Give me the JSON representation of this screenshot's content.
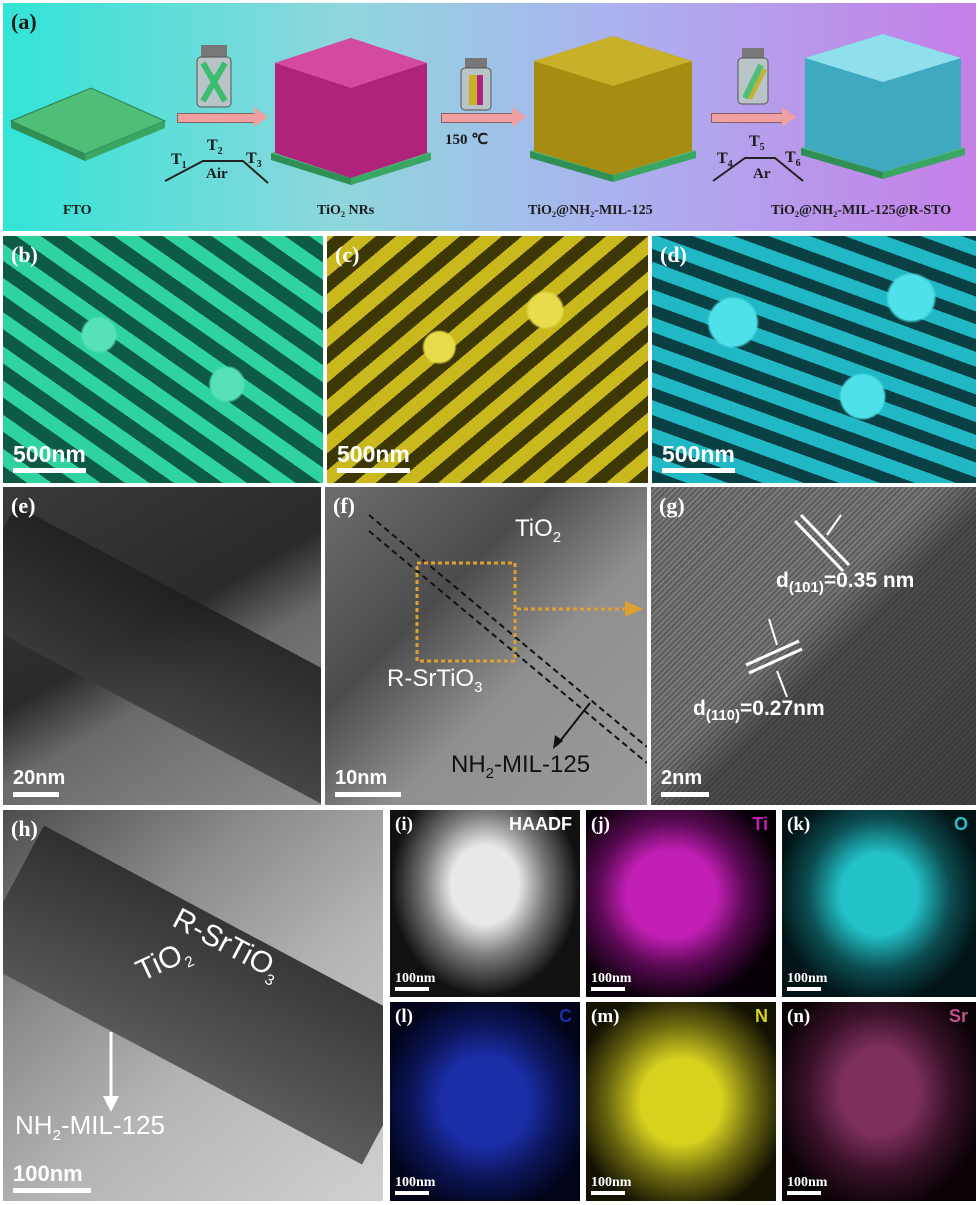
{
  "panel_a": {
    "label": "(a)",
    "captions": [
      "FTO",
      "TiO₂ NRs",
      "TiO₂@NH₂-MIL-125",
      "TiO₂@NH₂-MIL-125@R-STO"
    ],
    "step1": {
      "t1": "T",
      "t1_sub": "1",
      "t2": "T",
      "t2_sub": "2",
      "t3": "T",
      "t3_sub": "3",
      "atmosphere": "Air"
    },
    "step2": {
      "temp": "150 ℃"
    },
    "step3": {
      "t4": "T",
      "t4_sub": "4",
      "t5": "T",
      "t5_sub": "5",
      "t6": "T",
      "t6_sub": "6",
      "atmosphere": "Ar"
    }
  },
  "sem": [
    {
      "label": "(b)",
      "scale": "500nm",
      "color": "#2fd3a0"
    },
    {
      "label": "(c)",
      "scale": "500nm",
      "color": "#c9b91d"
    },
    {
      "label": "(d)",
      "scale": "500nm",
      "color": "#1fb8c4"
    }
  ],
  "tem_e": {
    "label": "(e)",
    "scale": "20nm"
  },
  "tem_f": {
    "label": "(f)",
    "scale": "10nm",
    "tio2": "TiO",
    "tio2_sub": "2",
    "rsto": "R-SrTiO",
    "rsto_sub": "3",
    "nh2": "NH",
    "nh2_sub": "2",
    "nh2_rest": "-MIL-125"
  },
  "tem_g": {
    "label": "(g)",
    "scale": "2nm",
    "d1_main": "d",
    "d1_sub": "(101)",
    "d1_value": "=0.35 nm",
    "d2_main": "d",
    "d2_sub": "(110)",
    "d2_value": "=0.27nm"
  },
  "tem_h": {
    "label": "(h)",
    "scale": "100nm",
    "rsto": "R-SrTiO",
    "rsto_sub": "3",
    "tio2": "TiO",
    "tio2_sub": "2",
    "nh2": "NH",
    "nh2_sub": "2",
    "nh2_rest": "-MIL-125"
  },
  "maps": [
    {
      "label": "(i)",
      "tag": "HAADF",
      "tag_color": "#ffffff",
      "scale": "100nm"
    },
    {
      "label": "(j)",
      "tag": "Ti",
      "tag_color": "#c21fb4",
      "scale": "100nm"
    },
    {
      "label": "(k)",
      "tag": "O",
      "tag_color": "#22c2c8",
      "scale": "100nm"
    },
    {
      "label": "(l)",
      "tag": "C",
      "tag_color": "#1a2ea8",
      "scale": "100nm"
    },
    {
      "label": "(m)",
      "tag": "N",
      "tag_color": "#d8d21f",
      "scale": "100nm"
    },
    {
      "label": "(n)",
      "tag": "Sr",
      "tag_color": "#c0508f",
      "scale": "100nm"
    }
  ]
}
